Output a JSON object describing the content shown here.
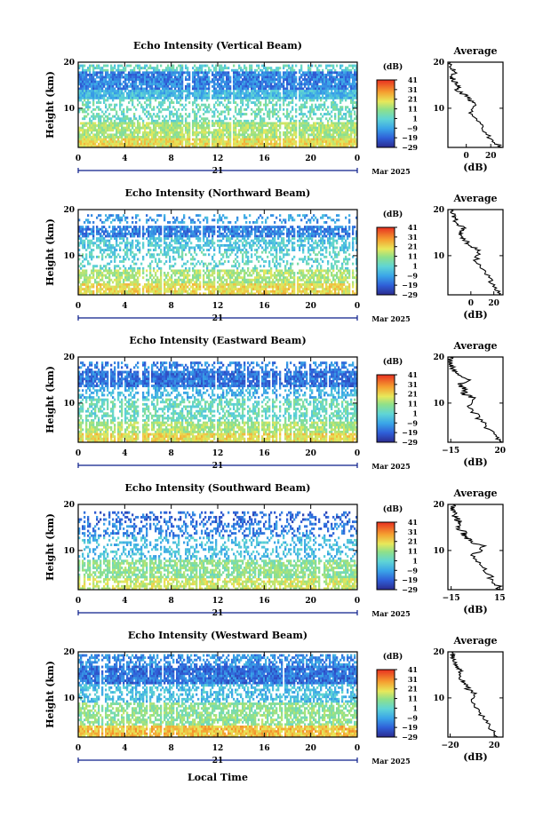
{
  "shared": {
    "x_ticks": [
      "0",
      "4",
      "8",
      "12",
      "16",
      "20",
      "0"
    ],
    "day_label": "21",
    "month_label": "Mar 2025",
    "x_axis_title": "Local Time",
    "height_label": "Height (km)",
    "height_ticks": [
      "20",
      "10"
    ],
    "colorbar_unit": "(dB)",
    "colorbar_ticks": [
      "41",
      "31",
      "21",
      "11",
      "1",
      "−9",
      "−19",
      "−29"
    ],
    "colorbar_range": [
      -29,
      41
    ],
    "avg_title": "Average",
    "avg_xlabel": "(dB)"
  },
  "chart_data": [
    {
      "type": "heatmap",
      "title": "Echo Intensity (Vertical Beam)",
      "x_range_hours": [
        0,
        24
      ],
      "y_range_km": [
        1.5,
        20
      ],
      "value_unit": "dB",
      "layers": [
        {
          "y": [
            18,
            19.5
          ],
          "level": 2,
          "coverage": 0.55
        },
        {
          "y": [
            14,
            18
          ],
          "level": -14,
          "coverage": 0.9
        },
        {
          "y": [
            12,
            14
          ],
          "level": -5,
          "coverage": 0.95
        },
        {
          "y": [
            7,
            12
          ],
          "level": 4,
          "coverage": 0.45
        },
        {
          "y": [
            3.5,
            7
          ],
          "level": 14,
          "coverage": 0.85
        },
        {
          "y": [
            1.5,
            3.5
          ],
          "level": 22,
          "coverage": 0.95
        }
      ],
      "profile": {
        "x_ticks": [
          "0",
          "20"
        ],
        "x_range": [
          -15,
          30
        ],
        "height_km": [
          1.5,
          3,
          5,
          7,
          9,
          11,
          12,
          13,
          14,
          15,
          16,
          17,
          18,
          19,
          20
        ],
        "value_db": [
          28,
          22,
          14,
          10,
          4,
          9,
          2,
          -2,
          -8,
          -6,
          -10,
          -12,
          -8,
          -14,
          -13
        ]
      }
    },
    {
      "type": "heatmap",
      "title": "Echo Intensity (Northward Beam)",
      "x_range_hours": [
        0,
        24
      ],
      "y_range_km": [
        1.5,
        20
      ],
      "value_unit": "dB",
      "layers": [
        {
          "y": [
            17,
            19
          ],
          "level": -10,
          "coverage": 0.3
        },
        {
          "y": [
            14,
            16.5
          ],
          "level": -14,
          "coverage": 0.8
        },
        {
          "y": [
            11,
            14
          ],
          "level": -2,
          "coverage": 0.6
        },
        {
          "y": [
            7,
            11
          ],
          "level": 2,
          "coverage": 0.35
        },
        {
          "y": [
            4,
            7
          ],
          "level": 14,
          "coverage": 0.7
        },
        {
          "y": [
            1.5,
            4
          ],
          "level": 22,
          "coverage": 0.85
        }
      ],
      "profile": {
        "x_ticks": [
          "0",
          "20"
        ],
        "x_range": [
          -20,
          28
        ],
        "height_km": [
          1.5,
          3,
          5,
          7,
          9,
          11,
          12,
          13,
          14,
          15,
          16,
          17,
          18,
          19,
          20
        ],
        "value_db": [
          26,
          22,
          16,
          10,
          4,
          8,
          0,
          -4,
          -8,
          -10,
          -6,
          -12,
          -14,
          -16,
          -15
        ]
      }
    },
    {
      "type": "heatmap",
      "title": "Echo Intensity (Eastward Beam)",
      "x_range_hours": [
        0,
        24
      ],
      "y_range_km": [
        1.5,
        20
      ],
      "value_unit": "dB",
      "layers": [
        {
          "y": [
            17,
            19
          ],
          "level": -14,
          "coverage": 0.45
        },
        {
          "y": [
            13.5,
            17
          ],
          "level": -16,
          "coverage": 0.92
        },
        {
          "y": [
            11,
            13.5
          ],
          "level": -6,
          "coverage": 0.5
        },
        {
          "y": [
            6,
            11
          ],
          "level": 4,
          "coverage": 0.6
        },
        {
          "y": [
            3.5,
            6
          ],
          "level": 14,
          "coverage": 0.8
        },
        {
          "y": [
            1.5,
            3.5
          ],
          "level": 22,
          "coverage": 0.9
        }
      ],
      "profile": {
        "x_ticks": [
          "−15",
          "20"
        ],
        "x_range": [
          -17,
          22
        ],
        "height_km": [
          1.5,
          3,
          5,
          7,
          9,
          11,
          12,
          13,
          14,
          15,
          16,
          17,
          18,
          19,
          20
        ],
        "value_db": [
          20,
          16,
          10,
          4,
          -2,
          2,
          -6,
          -4,
          -10,
          -2,
          -8,
          -12,
          -14,
          -15,
          -16
        ]
      }
    },
    {
      "type": "heatmap",
      "title": "Echo Intensity (Southward Beam)",
      "x_range_hours": [
        0,
        24
      ],
      "y_range_km": [
        1.5,
        20
      ],
      "value_unit": "dB",
      "layers": [
        {
          "y": [
            16,
            18.5
          ],
          "level": -18,
          "coverage": 0.35
        },
        {
          "y": [
            13,
            16
          ],
          "level": -14,
          "coverage": 0.4
        },
        {
          "y": [
            8,
            13
          ],
          "level": -4,
          "coverage": 0.35
        },
        {
          "y": [
            4,
            8
          ],
          "level": 10,
          "coverage": 0.75
        },
        {
          "y": [
            1.5,
            4
          ],
          "level": 18,
          "coverage": 0.7
        }
      ],
      "profile": {
        "x_ticks": [
          "−15",
          "15"
        ],
        "x_range": [
          -17,
          17
        ],
        "height_km": [
          1.5,
          3,
          5,
          7,
          9,
          11,
          12,
          13,
          14,
          15,
          16,
          17,
          18,
          19,
          20
        ],
        "value_db": [
          16,
          12,
          8,
          3,
          -2,
          6,
          -4,
          -6,
          -8,
          -10,
          -9,
          -12,
          -13,
          -15,
          -14
        ]
      }
    },
    {
      "type": "heatmap",
      "title": "Echo Intensity (Westward Beam)",
      "x_range_hours": [
        0,
        24
      ],
      "y_range_km": [
        1.5,
        20
      ],
      "value_unit": "dB",
      "layers": [
        {
          "y": [
            17,
            19.5
          ],
          "level": -12,
          "coverage": 0.55
        },
        {
          "y": [
            13,
            17
          ],
          "level": -16,
          "coverage": 0.92
        },
        {
          "y": [
            9,
            13
          ],
          "level": -4,
          "coverage": 0.55
        },
        {
          "y": [
            4,
            9
          ],
          "level": 10,
          "coverage": 0.7
        },
        {
          "y": [
            1.5,
            4
          ],
          "level": 26,
          "coverage": 0.92
        }
      ],
      "profile": {
        "x_ticks": [
          "−20",
          "20"
        ],
        "x_range": [
          -22,
          28
        ],
        "height_km": [
          1.5,
          3,
          5,
          7,
          9,
          11,
          12,
          13,
          14,
          15,
          16,
          17,
          18,
          19,
          20
        ],
        "value_db": [
          24,
          18,
          12,
          6,
          0,
          2,
          -4,
          -6,
          -10,
          -12,
          -10,
          -14,
          -15,
          -18,
          -17
        ]
      }
    }
  ]
}
